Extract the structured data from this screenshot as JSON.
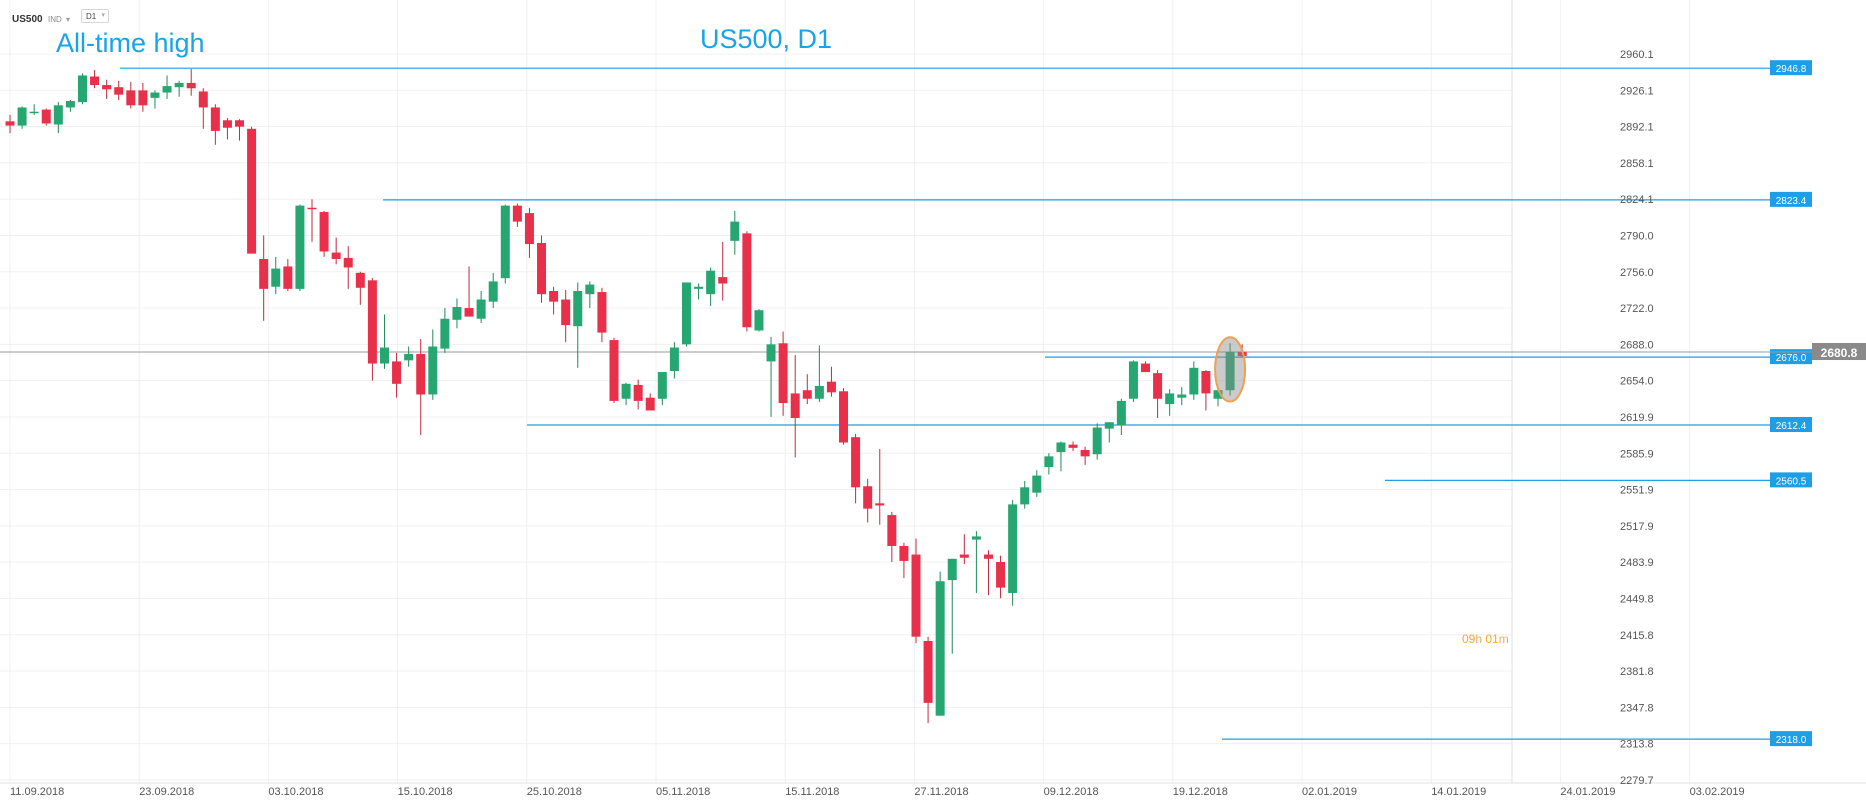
{
  "toolbar": {
    "symbol": "US500",
    "indicator_label": "IND",
    "timeframe": "D1"
  },
  "annotations": {
    "chart_title": "US500, D1",
    "all_time_high_label": "All-time high"
  },
  "countdown": {
    "hours": "09",
    "hours_unit": "h",
    "minutes": "01",
    "minutes_unit": "m"
  },
  "colors": {
    "bull": "#26a671",
    "bear": "#e8304a",
    "level_line": "#1e9ee6",
    "price_line": "#9a9a9a",
    "highlight": "#f0a050",
    "title": "#1aa3e8",
    "countdown": "#f5a623"
  },
  "chart_data": {
    "type": "candlestick",
    "title": "US500, D1",
    "ylim": [
      2279.7,
      2960.1
    ],
    "y_ticks": [
      "2960.1",
      "2926.1",
      "2892.1",
      "2858.1",
      "2824.1",
      "2790.0",
      "2756.0",
      "2722.0",
      "2688.0",
      "2654.0",
      "2619.9",
      "2585.9",
      "2551.9",
      "2517.9",
      "2483.9",
      "2449.8",
      "2415.8",
      "2381.8",
      "2347.8",
      "2313.8",
      "2279.7"
    ],
    "x_ticks": [
      "11.09.2018",
      "23.09.2018",
      "03.10.2018",
      "15.10.2018",
      "25.10.2018",
      "05.11.2018",
      "15.11.2018",
      "27.11.2018",
      "09.12.2018",
      "19.12.2018",
      "02.01.2019",
      "14.01.2019",
      "24.01.2019",
      "03.02.2019"
    ],
    "last_price": "2680.8",
    "levels": [
      {
        "label": "2946.8",
        "value": 2946.8
      },
      {
        "label": "2823.4",
        "value": 2823.4
      },
      {
        "label": "2676.0",
        "value": 2676.0
      },
      {
        "label": "2612.4",
        "value": 2612.4
      },
      {
        "label": "2560.5",
        "value": 2560.5
      },
      {
        "label": "2318.0",
        "value": 2318.0
      }
    ],
    "candles": [
      {
        "o": 2897,
        "h": 2903,
        "l": 2886,
        "c": 2893
      },
      {
        "o": 2893,
        "h": 2911,
        "l": 2890,
        "c": 2910
      },
      {
        "o": 2905,
        "h": 2913,
        "l": 2903,
        "c": 2906
      },
      {
        "o": 2908,
        "h": 2909,
        "l": 2893,
        "c": 2895
      },
      {
        "o": 2894,
        "h": 2915,
        "l": 2886,
        "c": 2912
      },
      {
        "o": 2910,
        "h": 2917,
        "l": 2906,
        "c": 2916
      },
      {
        "o": 2915,
        "h": 2942,
        "l": 2913,
        "c": 2940
      },
      {
        "o": 2939,
        "h": 2945,
        "l": 2928,
        "c": 2931
      },
      {
        "o": 2931,
        "h": 2936,
        "l": 2918,
        "c": 2927
      },
      {
        "o": 2929,
        "h": 2935,
        "l": 2917,
        "c": 2922
      },
      {
        "o": 2926,
        "h": 2934,
        "l": 2909,
        "c": 2912
      },
      {
        "o": 2926,
        "h": 2933,
        "l": 2906,
        "c": 2912
      },
      {
        "o": 2919,
        "h": 2926,
        "l": 2909,
        "c": 2924
      },
      {
        "o": 2924,
        "h": 2940,
        "l": 2918,
        "c": 2930
      },
      {
        "o": 2929,
        "h": 2935,
        "l": 2920,
        "c": 2933
      },
      {
        "o": 2933,
        "h": 2946,
        "l": 2921,
        "c": 2928
      },
      {
        "o": 2925,
        "h": 2928,
        "l": 2890,
        "c": 2910
      },
      {
        "o": 2910,
        "h": 2913,
        "l": 2875,
        "c": 2888
      },
      {
        "o": 2898,
        "h": 2900,
        "l": 2880,
        "c": 2891
      },
      {
        "o": 2898,
        "h": 2899,
        "l": 2879,
        "c": 2892
      },
      {
        "o": 2890,
        "h": 2892,
        "l": 2775,
        "c": 2773
      },
      {
        "o": 2768,
        "h": 2790,
        "l": 2710,
        "c": 2740
      },
      {
        "o": 2742,
        "h": 2770,
        "l": 2735,
        "c": 2759
      },
      {
        "o": 2761,
        "h": 2768,
        "l": 2738,
        "c": 2740
      },
      {
        "o": 2740,
        "h": 2819,
        "l": 2738,
        "c": 2818
      },
      {
        "o": 2816,
        "h": 2824,
        "l": 2784,
        "c": 2815
      },
      {
        "o": 2812,
        "h": 2813,
        "l": 2770,
        "c": 2775
      },
      {
        "o": 2774,
        "h": 2788,
        "l": 2763,
        "c": 2768
      },
      {
        "o": 2769,
        "h": 2780,
        "l": 2740,
        "c": 2760
      },
      {
        "o": 2755,
        "h": 2756,
        "l": 2725,
        "c": 2741
      },
      {
        "o": 2748,
        "h": 2750,
        "l": 2654,
        "c": 2670
      },
      {
        "o": 2670,
        "h": 2716,
        "l": 2665,
        "c": 2685
      },
      {
        "o": 2672,
        "h": 2680,
        "l": 2638,
        "c": 2651
      },
      {
        "o": 2673,
        "h": 2686,
        "l": 2667,
        "c": 2679
      },
      {
        "o": 2679,
        "h": 2693,
        "l": 2603,
        "c": 2641
      },
      {
        "o": 2641,
        "h": 2702,
        "l": 2636,
        "c": 2686
      },
      {
        "o": 2684,
        "h": 2722,
        "l": 2680,
        "c": 2712
      },
      {
        "o": 2711,
        "h": 2731,
        "l": 2703,
        "c": 2723
      },
      {
        "o": 2722,
        "h": 2761,
        "l": 2714,
        "c": 2714
      },
      {
        "o": 2712,
        "h": 2738,
        "l": 2708,
        "c": 2730
      },
      {
        "o": 2728,
        "h": 2755,
        "l": 2722,
        "c": 2747
      },
      {
        "o": 2750,
        "h": 2819,
        "l": 2745,
        "c": 2818
      },
      {
        "o": 2818,
        "h": 2820,
        "l": 2798,
        "c": 2803
      },
      {
        "o": 2811,
        "h": 2816,
        "l": 2769,
        "c": 2782
      },
      {
        "o": 2783,
        "h": 2790,
        "l": 2727,
        "c": 2735
      },
      {
        "o": 2738,
        "h": 2742,
        "l": 2716,
        "c": 2728
      },
      {
        "o": 2730,
        "h": 2739,
        "l": 2690,
        "c": 2706
      },
      {
        "o": 2705,
        "h": 2746,
        "l": 2666,
        "c": 2738
      },
      {
        "o": 2735,
        "h": 2747,
        "l": 2722,
        "c": 2744
      },
      {
        "o": 2737,
        "h": 2741,
        "l": 2690,
        "c": 2699
      },
      {
        "o": 2692,
        "h": 2694,
        "l": 2633,
        "c": 2635
      },
      {
        "o": 2637,
        "h": 2652,
        "l": 2631,
        "c": 2651
      },
      {
        "o": 2650,
        "h": 2655,
        "l": 2627,
        "c": 2635
      },
      {
        "o": 2638,
        "h": 2642,
        "l": 2626,
        "c": 2626
      },
      {
        "o": 2637,
        "h": 2662,
        "l": 2631,
        "c": 2662
      },
      {
        "o": 2663,
        "h": 2690,
        "l": 2656,
        "c": 2685
      },
      {
        "o": 2688,
        "h": 2746,
        "l": 2686,
        "c": 2746
      },
      {
        "o": 2740,
        "h": 2745,
        "l": 2730,
        "c": 2742
      },
      {
        "o": 2735,
        "h": 2760,
        "l": 2724,
        "c": 2757
      },
      {
        "o": 2751,
        "h": 2784,
        "l": 2729,
        "c": 2745
      },
      {
        "o": 2785,
        "h": 2813,
        "l": 2772,
        "c": 2803
      },
      {
        "o": 2792,
        "h": 2794,
        "l": 2700,
        "c": 2704
      },
      {
        "o": 2701,
        "h": 2721,
        "l": 2700,
        "c": 2720
      },
      {
        "o": 2672,
        "h": 2695,
        "l": 2620,
        "c": 2688
      },
      {
        "o": 2689,
        "h": 2700,
        "l": 2621,
        "c": 2633
      },
      {
        "o": 2642,
        "h": 2678,
        "l": 2582,
        "c": 2619
      },
      {
        "o": 2645,
        "h": 2660,
        "l": 2632,
        "c": 2637
      },
      {
        "o": 2637,
        "h": 2687,
        "l": 2634,
        "c": 2649
      },
      {
        "o": 2653,
        "h": 2667,
        "l": 2639,
        "c": 2643
      },
      {
        "o": 2644,
        "h": 2647,
        "l": 2594,
        "c": 2596
      },
      {
        "o": 2601,
        "h": 2604,
        "l": 2539,
        "c": 2554
      },
      {
        "o": 2555,
        "h": 2562,
        "l": 2521,
        "c": 2534
      },
      {
        "o": 2539,
        "h": 2590,
        "l": 2519,
        "c": 2537
      },
      {
        "o": 2528,
        "h": 2531,
        "l": 2484,
        "c": 2499
      },
      {
        "o": 2499,
        "h": 2502,
        "l": 2469,
        "c": 2485
      },
      {
        "o": 2491,
        "h": 2506,
        "l": 2408,
        "c": 2414
      },
      {
        "o": 2410,
        "h": 2414,
        "l": 2333,
        "c": 2352
      },
      {
        "o": 2340,
        "h": 2475,
        "l": 2340,
        "c": 2466
      },
      {
        "o": 2467,
        "h": 2487,
        "l": 2398,
        "c": 2487
      },
      {
        "o": 2491,
        "h": 2510,
        "l": 2482,
        "c": 2488
      },
      {
        "o": 2505,
        "h": 2513,
        "l": 2455,
        "c": 2508
      },
      {
        "o": 2491,
        "h": 2495,
        "l": 2453,
        "c": 2487
      },
      {
        "o": 2484,
        "h": 2490,
        "l": 2450,
        "c": 2460
      },
      {
        "o": 2455,
        "h": 2542,
        "l": 2443,
        "c": 2538
      },
      {
        "o": 2538,
        "h": 2560,
        "l": 2534,
        "c": 2554
      },
      {
        "o": 2549,
        "h": 2570,
        "l": 2545,
        "c": 2565
      },
      {
        "o": 2573,
        "h": 2586,
        "l": 2566,
        "c": 2583
      },
      {
        "o": 2587,
        "h": 2597,
        "l": 2569,
        "c": 2596
      },
      {
        "o": 2594,
        "h": 2597,
        "l": 2588,
        "c": 2591
      },
      {
        "o": 2589,
        "h": 2592,
        "l": 2575,
        "c": 2583
      },
      {
        "o": 2585,
        "h": 2614,
        "l": 2580,
        "c": 2610
      },
      {
        "o": 2609,
        "h": 2615,
        "l": 2596,
        "c": 2615
      },
      {
        "o": 2612,
        "h": 2637,
        "l": 2603,
        "c": 2635
      },
      {
        "o": 2637,
        "h": 2673,
        "l": 2634,
        "c": 2672
      },
      {
        "o": 2670,
        "h": 2672,
        "l": 2662,
        "c": 2662
      },
      {
        "o": 2661,
        "h": 2664,
        "l": 2619,
        "c": 2637
      },
      {
        "o": 2632,
        "h": 2646,
        "l": 2621,
        "c": 2642
      },
      {
        "o": 2638,
        "h": 2648,
        "l": 2631,
        "c": 2641
      },
      {
        "o": 2641,
        "h": 2672,
        "l": 2636,
        "c": 2666
      },
      {
        "o": 2663,
        "h": 2664,
        "l": 2626,
        "c": 2642
      },
      {
        "o": 2637,
        "h": 2644,
        "l": 2630,
        "c": 2645
      },
      {
        "o": 2645,
        "h": 2689,
        "l": 2640,
        "c": 2681
      },
      {
        "o": 2681,
        "h": 2688,
        "l": 2676,
        "c": 2677
      }
    ]
  }
}
